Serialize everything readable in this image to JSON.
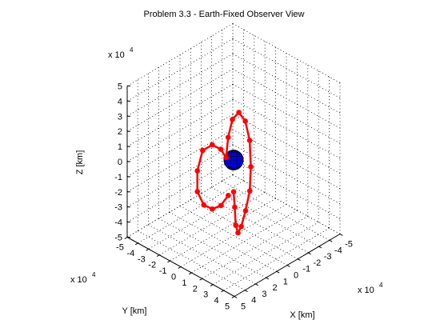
{
  "chart_data": {
    "type": "line3d",
    "title": "Problem 3.3 - Earth-Fixed Observer View",
    "xlabel": "X [km]",
    "ylabel": "Y [km]",
    "zlabel": "Z [km]",
    "axis_multiplier": "x 10",
    "axis_multiplier_exponent": "4",
    "xlim": [
      -5,
      5
    ],
    "ylim": [
      -5,
      5
    ],
    "zlim": [
      -5,
      5
    ],
    "ticks": [
      -5,
      -4,
      -3,
      -2,
      -1,
      0,
      1,
      2,
      3,
      4,
      5
    ],
    "tick_labels": [
      "-5",
      "-4",
      "-3",
      "-2",
      "-1",
      "0",
      "1",
      "2",
      "3",
      "4",
      "5"
    ],
    "grid": true,
    "view": "isometric",
    "trajectory_color": "#ff0000",
    "earth_color": "#0000ff",
    "earth_radius": 0.64,
    "trajectory": [
      {
        "x": 0.0,
        "y": 0.0,
        "z": -2.1
      },
      {
        "x": 0.2,
        "y": 0.1,
        "z": -3.0
      },
      {
        "x": 0.5,
        "y": 0.3,
        "z": -4.0
      },
      {
        "x": 1.1,
        "y": 0.7,
        "z": -4.1
      },
      {
        "x": 1.6,
        "y": 0.9,
        "z": -3.4
      },
      {
        "x": 2.0,
        "y": 0.9,
        "z": -2.2
      },
      {
        "x": 2.2,
        "y": 0.7,
        "z": -0.9
      },
      {
        "x": 2.0,
        "y": 0.4,
        "z": 0.5
      },
      {
        "x": 1.4,
        "y": -0.1,
        "z": 1.8
      },
      {
        "x": 0.6,
        "y": -0.5,
        "z": 2.6
      },
      {
        "x": -0.3,
        "y": -0.8,
        "z": 2.7
      },
      {
        "x": -0.9,
        "y": -0.8,
        "z": 2.0
      },
      {
        "x": -1.0,
        "y": -0.5,
        "z": 0.9
      },
      {
        "x": -0.8,
        "y": -0.1,
        "z": -0.2
      },
      {
        "x": -1.0,
        "y": 0.2,
        "z": 0.4
      },
      {
        "x": -1.4,
        "y": 0.6,
        "z": 0.7
      },
      {
        "x": -1.9,
        "y": 1.0,
        "z": 0.3
      },
      {
        "x": -2.1,
        "y": 1.3,
        "z": -1.0
      },
      {
        "x": -2.0,
        "y": 1.4,
        "z": -2.3
      },
      {
        "x": -1.6,
        "y": 1.2,
        "z": -3.1
      },
      {
        "x": -1.1,
        "y": 0.9,
        "z": -3.3
      },
      {
        "x": -0.6,
        "y": 0.6,
        "z": -3.0
      },
      {
        "x": -0.2,
        "y": 0.3,
        "z": -2.3
      }
    ]
  }
}
